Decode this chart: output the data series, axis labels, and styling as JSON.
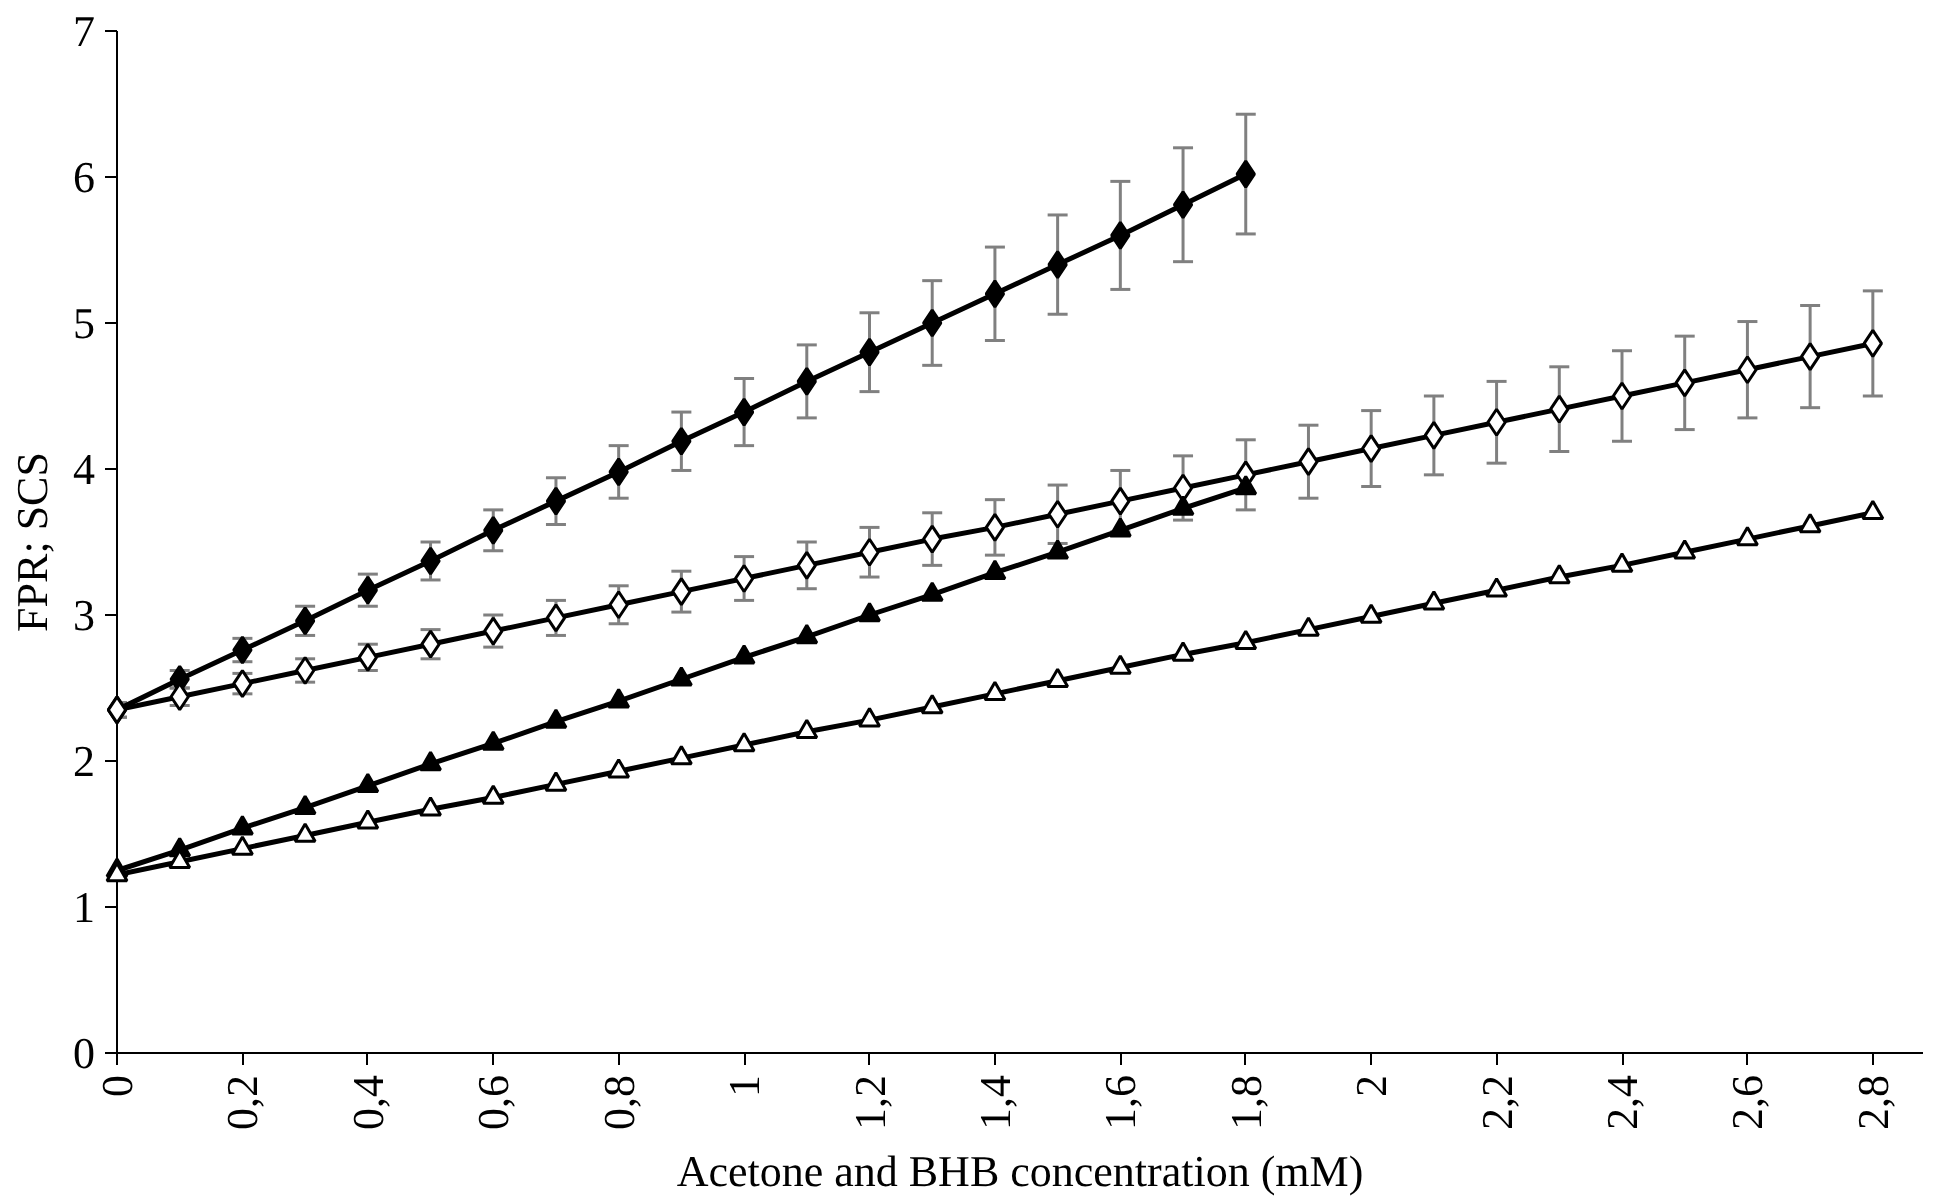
{
  "chart_data": {
    "type": "line",
    "xlabel": "Acetone and BHB concentration (mM)",
    "ylabel": "FPR; SCS",
    "xlim": [
      0,
      2.88
    ],
    "ylim": [
      0,
      7
    ],
    "xticks": [
      {
        "value": 0,
        "label": "0"
      },
      {
        "value": 0.2,
        "label": "0,2"
      },
      {
        "value": 0.4,
        "label": "0,4"
      },
      {
        "value": 0.6,
        "label": "0,6"
      },
      {
        "value": 0.8,
        "label": "0,8"
      },
      {
        "value": 1,
        "label": "1"
      },
      {
        "value": 1.2,
        "label": "1,2"
      },
      {
        "value": 1.4,
        "label": "1,4"
      },
      {
        "value": 1.6,
        "label": "1,6"
      },
      {
        "value": 1.8,
        "label": "1,8"
      },
      {
        "value": 2,
        "label": "2"
      },
      {
        "value": 2.2,
        "label": "2,2"
      },
      {
        "value": 2.4,
        "label": "2,4"
      },
      {
        "value": 2.6,
        "label": "2,6"
      },
      {
        "value": 2.8,
        "label": "2,8"
      }
    ],
    "yticks": [
      0,
      1,
      2,
      3,
      4,
      5,
      6,
      7
    ],
    "grid": false,
    "line_style": "solid",
    "series": [
      {
        "color": "#000000",
        "marker": "diamond",
        "x": [
          0,
          0.1,
          0.2,
          0.3,
          0.4,
          0.5,
          0.6,
          0.7,
          0.8,
          0.9,
          1.0,
          1.1,
          1.2,
          1.3,
          1.4,
          1.5,
          1.6,
          1.7,
          1.8
        ],
        "values": [
          2.35,
          2.56,
          2.76,
          2.96,
          3.17,
          3.37,
          3.58,
          3.78,
          3.98,
          4.19,
          4.39,
          4.6,
          4.8,
          5.0,
          5.2,
          5.4,
          5.6,
          5.81,
          6.02
        ],
        "errors": [
          0.05,
          0.06,
          0.08,
          0.1,
          0.11,
          0.13,
          0.14,
          0.16,
          0.18,
          0.2,
          0.23,
          0.25,
          0.27,
          0.29,
          0.32,
          0.34,
          0.37,
          0.39,
          0.41
        ]
      },
      {
        "color": "#000000",
        "marker": "diamond",
        "colors": [
          "#ffffff",
          "#ffffff",
          "#ffffff",
          "#ffffff",
          "#ffffff",
          "#ffffff",
          "#ffffff",
          "#ffffff",
          "#ffffff",
          "#ffffff",
          "#ffffff",
          "#ffffff",
          "#ffffff",
          "#ffffff",
          "#ffffff",
          "#ffffff",
          "#ffffff",
          "#ffffff",
          "#ffffff",
          "#ffffff",
          "#ffffff",
          "#ffffff",
          "#ffffff",
          "#ffffff",
          "#ffffff",
          "#ffffff",
          "#ffffff",
          "#ffffff",
          "#ffffff"
        ],
        "x": [
          0,
          0.1,
          0.2,
          0.3,
          0.4,
          0.5,
          0.6,
          0.7,
          0.8,
          0.9,
          1.0,
          1.1,
          1.2,
          1.3,
          1.4,
          1.5,
          1.6,
          1.7,
          1.8,
          1.9,
          2.0,
          2.1,
          2.2,
          2.3,
          2.4,
          2.5,
          2.6,
          2.7,
          2.8
        ],
        "values": [
          2.35,
          2.44,
          2.53,
          2.62,
          2.71,
          2.8,
          2.89,
          2.98,
          3.07,
          3.16,
          3.25,
          3.34,
          3.43,
          3.52,
          3.6,
          3.69,
          3.78,
          3.87,
          3.96,
          4.05,
          4.14,
          4.23,
          4.32,
          4.41,
          4.5,
          4.59,
          4.68,
          4.77,
          4.86
        ],
        "errors": [
          0.05,
          0.06,
          0.07,
          0.08,
          0.09,
          0.1,
          0.11,
          0.12,
          0.13,
          0.14,
          0.15,
          0.16,
          0.17,
          0.18,
          0.19,
          0.2,
          0.21,
          0.22,
          0.24,
          0.25,
          0.26,
          0.27,
          0.28,
          0.29,
          0.31,
          0.32,
          0.33,
          0.35,
          0.36
        ]
      },
      {
        "color": "#000000",
        "marker": "triangle",
        "x": [
          0,
          0.1,
          0.2,
          0.3,
          0.4,
          0.5,
          0.6,
          0.7,
          0.8,
          0.9,
          1.0,
          1.1,
          1.2,
          1.3,
          1.4,
          1.5,
          1.6,
          1.7,
          1.8
        ],
        "values": [
          1.25,
          1.39,
          1.54,
          1.68,
          1.83,
          1.98,
          2.12,
          2.27,
          2.41,
          2.56,
          2.71,
          2.85,
          3.0,
          3.14,
          3.29,
          3.43,
          3.58,
          3.73,
          3.87
        ]
      },
      {
        "color": "#000000",
        "marker": "triangle",
        "colors": [
          "#ffffff",
          "#ffffff",
          "#ffffff",
          "#ffffff",
          "#ffffff",
          "#ffffff",
          "#ffffff",
          "#ffffff",
          "#ffffff",
          "#ffffff",
          "#ffffff",
          "#ffffff",
          "#ffffff",
          "#ffffff",
          "#ffffff",
          "#ffffff",
          "#ffffff",
          "#ffffff",
          "#ffffff",
          "#ffffff",
          "#ffffff",
          "#ffffff",
          "#ffffff",
          "#ffffff",
          "#ffffff",
          "#ffffff",
          "#ffffff",
          "#ffffff",
          "#ffffff"
        ],
        "x": [
          0,
          0.1,
          0.2,
          0.3,
          0.4,
          0.5,
          0.6,
          0.7,
          0.8,
          0.9,
          1.0,
          1.1,
          1.2,
          1.3,
          1.4,
          1.5,
          1.6,
          1.7,
          1.8,
          1.9,
          2.0,
          2.1,
          2.2,
          2.3,
          2.4,
          2.5,
          2.6,
          2.7,
          2.8
        ],
        "values": [
          1.22,
          1.31,
          1.4,
          1.49,
          1.58,
          1.67,
          1.75,
          1.84,
          1.93,
          2.02,
          2.11,
          2.2,
          2.28,
          2.37,
          2.46,
          2.55,
          2.64,
          2.73,
          2.81,
          2.9,
          2.99,
          3.08,
          3.17,
          3.26,
          3.34,
          3.43,
          3.52,
          3.61,
          3.7
        ]
      }
    ]
  }
}
